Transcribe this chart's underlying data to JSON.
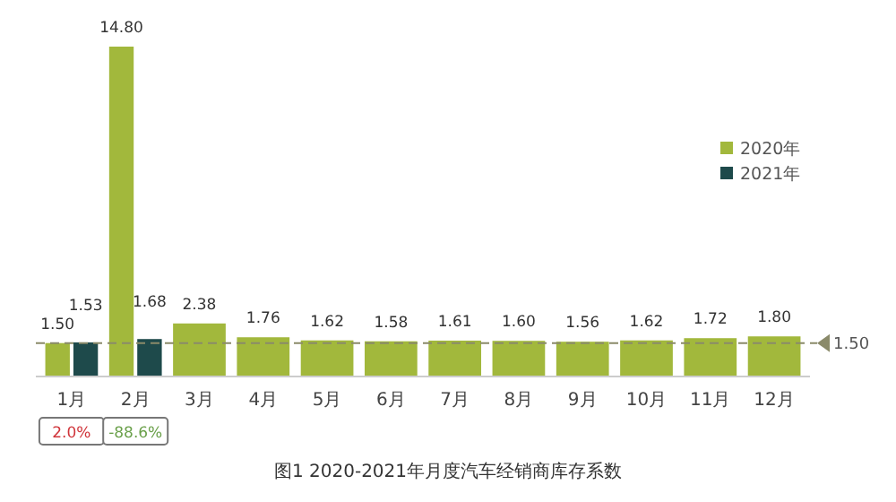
{
  "chart_data": {
    "type": "bar",
    "title": "图1  2020-2021年月度汽车经销商库存系数",
    "categories": [
      "1月",
      "2月",
      "3月",
      "4月",
      "5月",
      "6月",
      "7月",
      "8月",
      "9月",
      "10月",
      "11月",
      "12月"
    ],
    "series": [
      {
        "name": "2020年",
        "color": "#a2b83c",
        "values": [
          1.5,
          14.8,
          2.38,
          1.76,
          1.62,
          1.58,
          1.61,
          1.6,
          1.56,
          1.62,
          1.72,
          1.8
        ],
        "value_labels": [
          "1.50",
          "14.80",
          "2.38",
          "1.76",
          "1.62",
          "1.58",
          "1.61",
          "1.60",
          "1.56",
          "1.62",
          "1.72",
          "1.80"
        ]
      },
      {
        "name": "2021年",
        "color": "#1e4a4b",
        "values": [
          1.53,
          1.68,
          null,
          null,
          null,
          null,
          null,
          null,
          null,
          null,
          null,
          null
        ],
        "value_labels": [
          "1.53",
          "1.68",
          null,
          null,
          null,
          null,
          null,
          null,
          null,
          null,
          null,
          null
        ]
      }
    ],
    "ref_lines": [
      {
        "axis": "y",
        "value": 1.5,
        "label": "1.50",
        "color": "#8a8a6a",
        "line_style": "dashed"
      }
    ],
    "annotations": [
      "2.0%",
      "-88.6%"
    ],
    "legend": "top right",
    "tick_labels": "x"
  }
}
